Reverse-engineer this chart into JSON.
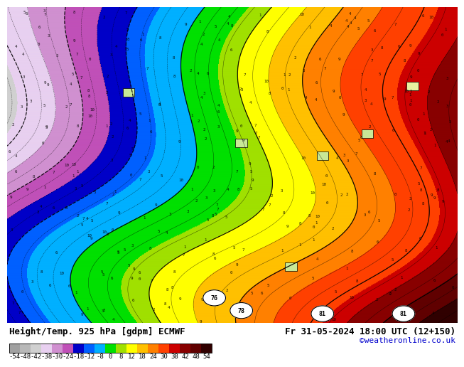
{
  "title_left": "Height/Temp. 925 hPa [gdpm] ECMWF",
  "title_right": "Fr 31-05-2024 18:00 UTC (12+150)",
  "credit": "©weatheronline.co.uk",
  "colorbar_ticks": [
    -54,
    -48,
    -42,
    -38,
    -30,
    -24,
    -18,
    -12,
    -8,
    0,
    8,
    12,
    18,
    24,
    30,
    38,
    42,
    48,
    54
  ],
  "colorbar_labels": [
    "-54",
    "-48",
    "-42",
    "-38",
    "-30",
    "-24",
    "-18",
    "-12",
    "-8",
    "0",
    "8",
    "12",
    "18",
    "24",
    "30",
    "38",
    "42",
    "48",
    "54"
  ],
  "colorbar_colors": [
    "#a0a0a0",
    "#b8b8b8",
    "#d0d0d0",
    "#e8d0f0",
    "#d090d0",
    "#c050b8",
    "#0000c8",
    "#0060ff",
    "#00b0ff",
    "#00e000",
    "#a0e000",
    "#ffff00",
    "#ffc000",
    "#ff8000",
    "#ff4000",
    "#cc0000",
    "#880000",
    "#600000",
    "#300000"
  ],
  "title_color": "#000000",
  "credit_color": "#0000cc",
  "colorbar_label_fontsize": 6.5,
  "title_fontsize": 9,
  "credit_fontsize": 8
}
